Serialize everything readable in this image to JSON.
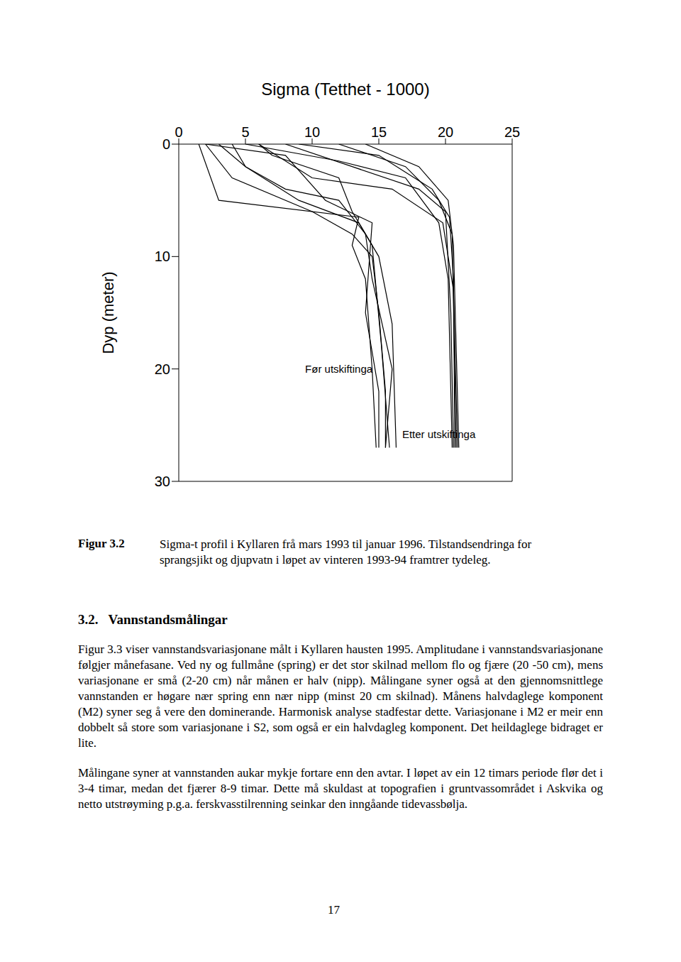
{
  "chart_data": {
    "type": "line",
    "title": "Sigma (Tetthet - 1000)",
    "y_label": "Dyp (meter)",
    "xlim": [
      0,
      25
    ],
    "xticks": [
      0,
      5,
      10,
      15,
      20,
      25
    ],
    "ylim": [
      0,
      30
    ],
    "yticks": [
      0,
      10,
      20,
      30
    ],
    "color": "#000000",
    "annotations": [
      {
        "text": "Før utskiftinga",
        "x": 12,
        "y": 20
      },
      {
        "text": "Etter utskiftinga",
        "x": 19.5,
        "y": 25.8
      }
    ],
    "series": [
      {
        "x": [
          2,
          4,
          10,
          13,
          14.5,
          15,
          15.5,
          15.5
        ],
        "values": [
          0,
          3,
          6,
          8,
          10,
          15,
          22,
          27
        ]
      },
      {
        "x": [
          4,
          5,
          8,
          12,
          14,
          14.5,
          16,
          15.5
        ],
        "values": [
          0,
          2,
          4,
          5,
          8,
          12,
          20,
          27
        ]
      },
      {
        "x": [
          1.5,
          3,
          13.5,
          13,
          14,
          14.5,
          14.8
        ],
        "values": [
          0,
          5,
          6.5,
          9,
          12,
          20,
          27
        ]
      },
      {
        "x": [
          6,
          7,
          12,
          13,
          14.5,
          15.2,
          15.8
        ],
        "values": [
          0,
          1,
          3,
          6,
          9,
          18,
          27
        ]
      },
      {
        "x": [
          3,
          5,
          9,
          13.5,
          15,
          16,
          16.3
        ],
        "values": [
          0,
          2,
          5,
          7,
          10,
          16,
          27
        ]
      },
      {
        "x": [
          2,
          8,
          11,
          14.5,
          14,
          15,
          15
        ],
        "values": [
          0,
          1,
          5,
          7,
          15,
          22,
          27
        ]
      },
      {
        "x": [
          5,
          12,
          17,
          19.5,
          20.2,
          20.5
        ],
        "values": [
          0,
          1.5,
          3,
          7,
          12,
          27
        ]
      },
      {
        "x": [
          8,
          13,
          18,
          20,
          20.4,
          20.6
        ],
        "values": [
          0,
          2,
          4,
          6,
          15,
          27
        ]
      },
      {
        "x": [
          9,
          15,
          19,
          20.3,
          20.6,
          20.7
        ],
        "values": [
          0,
          1,
          4,
          6.5,
          12,
          27
        ]
      },
      {
        "x": [
          12,
          17,
          19.5,
          20.5,
          20.8
        ],
        "values": [
          0,
          2,
          5,
          8,
          27
        ]
      },
      {
        "x": [
          6,
          10,
          16,
          19.8,
          20.6,
          20.9
        ],
        "values": [
          0,
          3,
          4,
          7,
          13,
          27
        ]
      },
      {
        "x": [
          14,
          18,
          20.2,
          20.6,
          21
        ],
        "values": [
          0,
          2,
          5,
          9,
          27
        ]
      }
    ]
  },
  "figure": {
    "label": "Figur 3.2",
    "caption": "Sigma-t profil i Kyllaren frå mars 1993 til januar 1996. Tilstandsendringa for sprangsjikt og djupvatn i løpet av vinteren 1993-94 framtrer tydeleg."
  },
  "section": {
    "number": "3.2.",
    "title": "Vannstandsmålingar"
  },
  "paragraphs": [
    "Figur 3.3 viser vannstandsvariasjonane målt i Kyllaren hausten 1995. Amplitudane i vannstandsvariasjonane følgjer månefasane. Ved ny og fullmåne (spring) er det stor skilnad mellom flo og fjære (20 -50 cm), mens variasjonane er små (2-20 cm) når månen er halv (nipp). Målingane syner også at den gjennomsnittlege vannstanden er høgare nær spring enn nær nipp (minst 20 cm skilnad). Månens halvdaglege komponent (M2) syner seg å vere den dominerande. Harmonisk analyse stadfestar dette. Variasjonane i M2 er meir enn dobbelt så store som variasjonane i S2, som også er ein halvdagleg komponent. Det heildaglege bidraget er lite.",
    "Målingane syner at vannstanden aukar mykje fortare enn den avtar. I løpet av ein 12 timars periode flør det i 3-4 timar, medan det fjærer 8-9 timar. Dette må skuldast at topografien i gruntvassområdet i Askvika og netto utstrøyming p.g.a. ferskvasstilrenning seinkar den inngåande tidevassbølja."
  ],
  "page_number": "17"
}
